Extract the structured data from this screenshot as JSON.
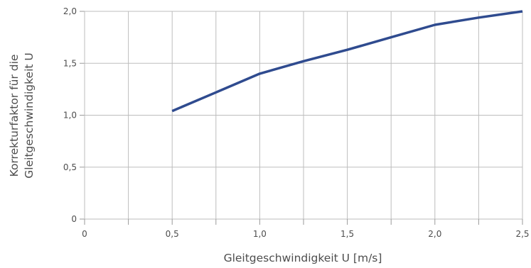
{
  "chart_data": {
    "type": "line",
    "xlabel": "Gleitgeschwindigkeit U [m/s]",
    "ylabel_lines": [
      "Korrekturfaktor für die",
      "Gleitgeschwindigkeit U"
    ],
    "xlim": [
      0,
      2.5
    ],
    "ylim": [
      0,
      2.0
    ],
    "x_ticks": [
      0,
      0.5,
      1.0,
      1.5,
      2.0,
      2.5
    ],
    "x_tick_labels": [
      "0",
      "0,5",
      "1,0",
      "1,5",
      "2,0",
      "2,5"
    ],
    "y_ticks": [
      0,
      0.5,
      1.0,
      1.5,
      2.0
    ],
    "y_tick_labels": [
      "0",
      "0,5",
      "1,0",
      "1,5",
      "2,0"
    ],
    "x_minor_step": 0.25,
    "grid": true,
    "series": [
      {
        "color": "#2f4b8f",
        "x": [
          0.5,
          0.75,
          1.0,
          1.25,
          1.5,
          1.75,
          2.0,
          2.25,
          2.5
        ],
        "values": [
          1.04,
          1.22,
          1.4,
          1.52,
          1.63,
          1.75,
          1.87,
          1.94,
          2.0
        ]
      }
    ]
  }
}
